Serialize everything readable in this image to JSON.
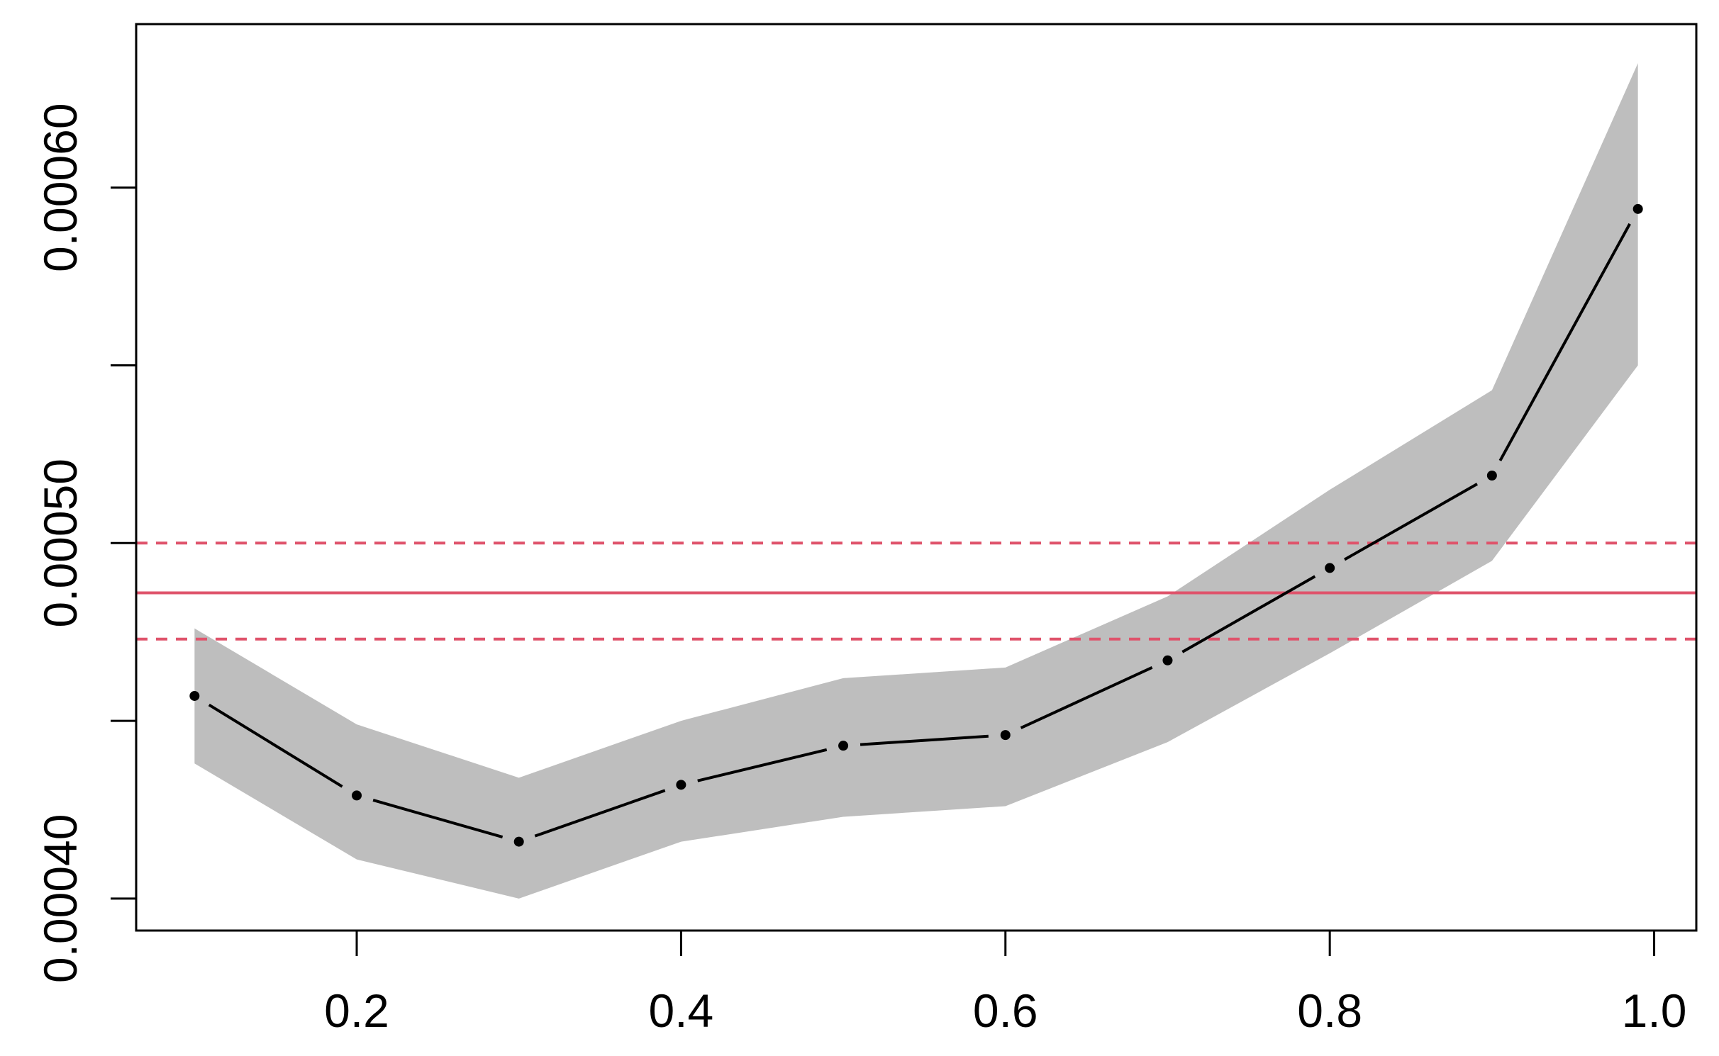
{
  "chart_data": {
    "type": "line",
    "title": "",
    "xlabel": "",
    "ylabel": "",
    "xlim": [
      0.064,
      1.026
    ],
    "ylim": [
      0.000391,
      0.000646
    ],
    "x_ticks": [
      0.2,
      0.4,
      0.6,
      0.8,
      1.0
    ],
    "x_tick_labels": [
      "0.2",
      "0.4",
      "0.6",
      "0.8",
      "1.0"
    ],
    "y_ticks": [
      0.0004,
      0.00045,
      0.0005,
      0.00055,
      0.0006
    ],
    "y_tick_labels": [
      "0.00040",
      "",
      "0.00050",
      "",
      "0.00060"
    ],
    "grid": false,
    "series": [
      {
        "style": "dot-dash line with points",
        "color": "#000000",
        "x": [
          0.1,
          0.2,
          0.3,
          0.4,
          0.5,
          0.6,
          0.7,
          0.8,
          0.9,
          0.99
        ],
        "y": [
          0.000457,
          0.000429,
          0.000416,
          0.000432,
          0.000443,
          0.000446,
          0.000467,
          0.000493,
          0.000519,
          0.000594
        ]
      }
    ],
    "band": {
      "color": "#bebebe",
      "x": [
        0.1,
        0.2,
        0.3,
        0.4,
        0.5,
        0.6,
        0.7,
        0.8,
        0.9,
        0.99
      ],
      "upper": [
        0.000476,
        0.000449,
        0.000434,
        0.00045,
        0.000462,
        0.000465,
        0.000485,
        0.000515,
        0.000543,
        0.000635
      ],
      "lower": [
        0.000438,
        0.000411,
        0.0004,
        0.000416,
        0.000423,
        0.000426,
        0.000444,
        0.000469,
        0.000495,
        0.00055
      ]
    },
    "reference_lines": [
      {
        "y": 0.000486,
        "style": "solid",
        "color": "#df536b"
      },
      {
        "y": 0.0005,
        "style": "dashed",
        "color": "#df536b"
      },
      {
        "y": 0.000473,
        "style": "dashed",
        "color": "#df536b"
      }
    ]
  }
}
